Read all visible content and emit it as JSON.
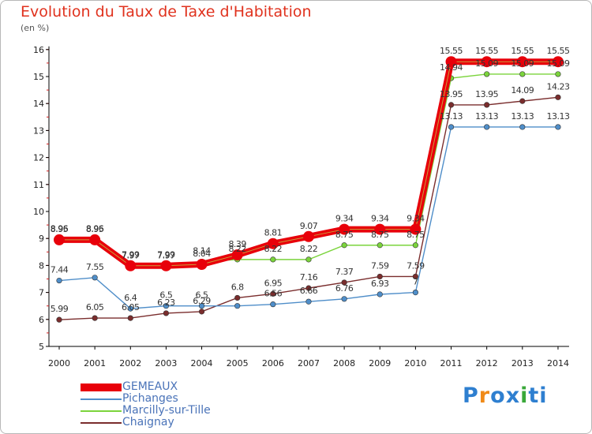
{
  "chart_data": {
    "type": "line",
    "title": "Evolution du Taux de Taxe d'Habitation",
    "subtitle": "(en %)",
    "x": [
      "2000",
      "2001",
      "2002",
      "2003",
      "2004",
      "2005",
      "2006",
      "2007",
      "2008",
      "2009",
      "2010",
      "2011",
      "2012",
      "2013",
      "2014"
    ],
    "ylim": [
      5,
      16
    ],
    "yticks": [
      5,
      6,
      7,
      8,
      9,
      10,
      11,
      12,
      13,
      14,
      15,
      16
    ],
    "grid": false,
    "legend_position": "bottom-left",
    "series": [
      {
        "name": "GEMEAUX",
        "color": "#e8000a",
        "values": [
          8.95,
          8.95,
          7.99,
          7.99,
          8.04,
          8.39,
          8.81,
          9.07,
          9.34,
          9.34,
          9.34,
          15.55,
          15.55,
          15.55,
          15.55
        ],
        "labels": [
          "8.95",
          "8.95",
          "7.99",
          "7.99",
          "8.04",
          "8.39",
          "8.81",
          "9.07",
          "9.34",
          "9.34",
          "9.34",
          "15.55",
          "15.55",
          "15.55",
          "15.55"
        ]
      },
      {
        "name": "Pichanges",
        "color": "#4f8ec9",
        "values": [
          7.44,
          7.55,
          6.4,
          6.5,
          6.5,
          6.5,
          6.56,
          6.66,
          6.76,
          6.93,
          7.0,
          13.13,
          13.13,
          13.13,
          13.13
        ],
        "labels": [
          "7.44",
          "7.55",
          "6.4",
          "6.5",
          "6.5",
          "",
          "6.56",
          "6.66",
          "6.76",
          "6.93",
          "7",
          "13.13",
          "13.13",
          "13.13",
          "13.13"
        ]
      },
      {
        "name": "Marcilly-sur-Tille",
        "color": "#7bd43c",
        "values": [
          8.96,
          8.96,
          7.97,
          7.97,
          8.14,
          8.22,
          8.22,
          8.22,
          8.75,
          8.75,
          8.75,
          14.94,
          15.09,
          15.09,
          15.09
        ],
        "labels": [
          "8.96",
          "8.96",
          "7.97",
          "7.97",
          "8.14",
          "8.22",
          "8.22",
          "8.22",
          "8.75",
          "8.75",
          "8.75",
          "14.94",
          "15.09",
          "15.09",
          "15.09"
        ]
      },
      {
        "name": "Chaignay",
        "color": "#7a2d2d",
        "values": [
          5.99,
          6.05,
          6.05,
          6.23,
          6.29,
          6.8,
          6.95,
          7.16,
          7.37,
          7.59,
          7.59,
          13.95,
          13.95,
          14.09,
          14.23
        ],
        "labels": [
          "5.99",
          "6.05",
          "6.05",
          "6.23",
          "6.29",
          "6.8",
          "6.95",
          "7.16",
          "7.37",
          "7.59",
          "7.59",
          "13.95",
          "13.95",
          "14.09",
          "14.23"
        ]
      }
    ]
  },
  "logo": {
    "text": "Proxiti",
    "letter_colors": [
      "#2e7fd0",
      "#f08a18",
      "#2e7fd0",
      "#2e7fd0",
      "#3aa83a",
      "#2e7fd0",
      "#2e7fd0"
    ]
  }
}
